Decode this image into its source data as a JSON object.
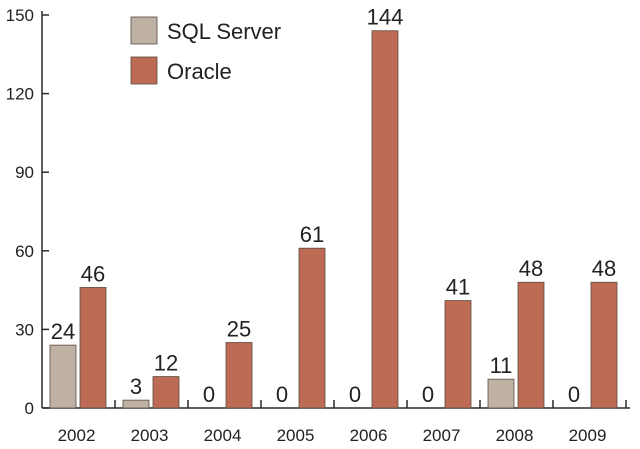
{
  "chart_data": {
    "type": "bar",
    "title": "",
    "xlabel": "",
    "ylabel": "",
    "categories": [
      "2002",
      "2003",
      "2004",
      "2005",
      "2006",
      "2007",
      "2008",
      "2009"
    ],
    "series": [
      {
        "name": "SQL Server",
        "color": "#bfb1a3",
        "values": [
          24,
          3,
          0,
          0,
          0,
          0,
          11,
          0
        ]
      },
      {
        "name": "Oracle",
        "color": "#be6b55",
        "values": [
          46,
          12,
          25,
          61,
          144,
          41,
          48,
          48
        ]
      }
    ],
    "ylim": [
      0,
      150
    ],
    "yticks": [
      0,
      30,
      60,
      90,
      120,
      150
    ],
    "grid": false,
    "legend": "top-left",
    "data_labels": true
  }
}
